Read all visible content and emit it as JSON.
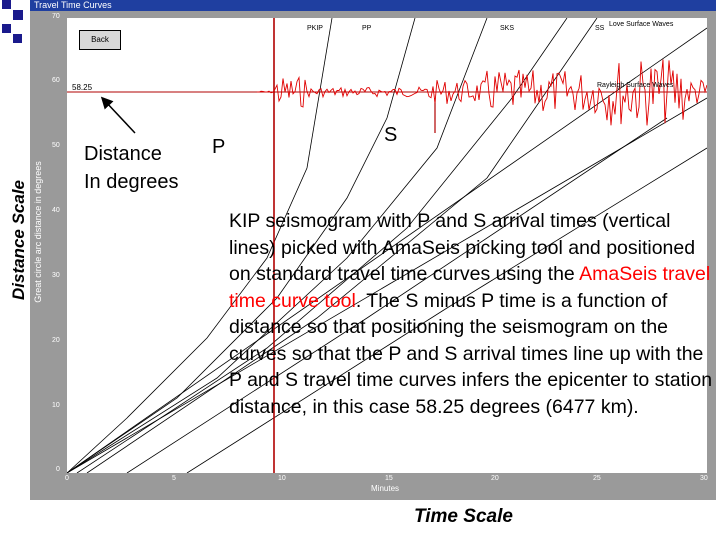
{
  "window": {
    "title": "Travel Time Curves"
  },
  "toolbar": {
    "back_label": "Back"
  },
  "plot": {
    "distance_reading": "58.25",
    "y_axis_title": "Great circle arc distance in degrees",
    "x_axis_title": "Minutes",
    "y_ticks": [
      "70",
      "60",
      "50",
      "40",
      "30",
      "20",
      "10",
      "0"
    ],
    "x_ticks": [
      "0",
      "5",
      "10",
      "15",
      "20",
      "25",
      "30"
    ],
    "curves": {
      "pkip": "PKIP",
      "pp": "PP",
      "sks": "SKS",
      "ss": "SS",
      "love": "Love Surface Waves",
      "rayleigh": "Rayleigh Surface Waves"
    }
  },
  "annotations": {
    "distance_line1": "Distance",
    "distance_line2": "In degrees",
    "p": "P",
    "s": "S",
    "distance_scale": "Distance Scale",
    "time_scale": "Time Scale"
  },
  "caption": {
    "part1": "KIP seismogram with P and S arrival times (vertical lines) picked with AmaSeis picking tool and positioned on standard travel time curves using the ",
    "link": "AmaSeis travel time curve tool",
    "part2": ".  The S minus P time is a function of distance so that positioning the seismogram on the curves so that the P and S arrival times line up with the P and S travel time curves infers the epicenter to station distance, in this case 58.25 degrees (6477 km)."
  },
  "colors": {
    "bullet": "#1a1a8c",
    "titlebar": "#1f3fa0",
    "window": "#9a9a9a",
    "seismogram": "#e00000",
    "link": "#ff0000"
  }
}
